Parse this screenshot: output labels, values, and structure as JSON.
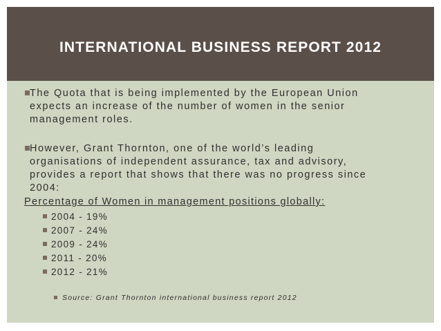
{
  "slide": {
    "title": "INTERNATIONAL BUSINESS REPORT 2012",
    "bullets": [
      {
        "lines": [
          "The Quota that is being implemented by the European Union",
          "expects an increase of the number of women in the senior",
          "management roles."
        ]
      },
      {
        "lines": [
          "However, Grant Thornton, one of the world’s leading",
          "organisations of independent assurance, tax and advisory,",
          "provides a report that shows that there was no progress since",
          "2004:"
        ]
      }
    ],
    "heading": "Percentage of Women in management positions globally:",
    "stats": [
      "2004 - 19%",
      "2007 - 24%",
      "2009 - 24%",
      "2011 - 20%",
      "2012 - 21%"
    ],
    "source": "Source: Grant Thornton international business report 2012"
  },
  "colors": {
    "title_bar": "#5b4f49",
    "content_bg": "#cfd6c1",
    "bullet_marker": "#7a6b62",
    "text": "#2f2f2f"
  },
  "icons": {
    "bullet": "square-bullet-icon"
  }
}
